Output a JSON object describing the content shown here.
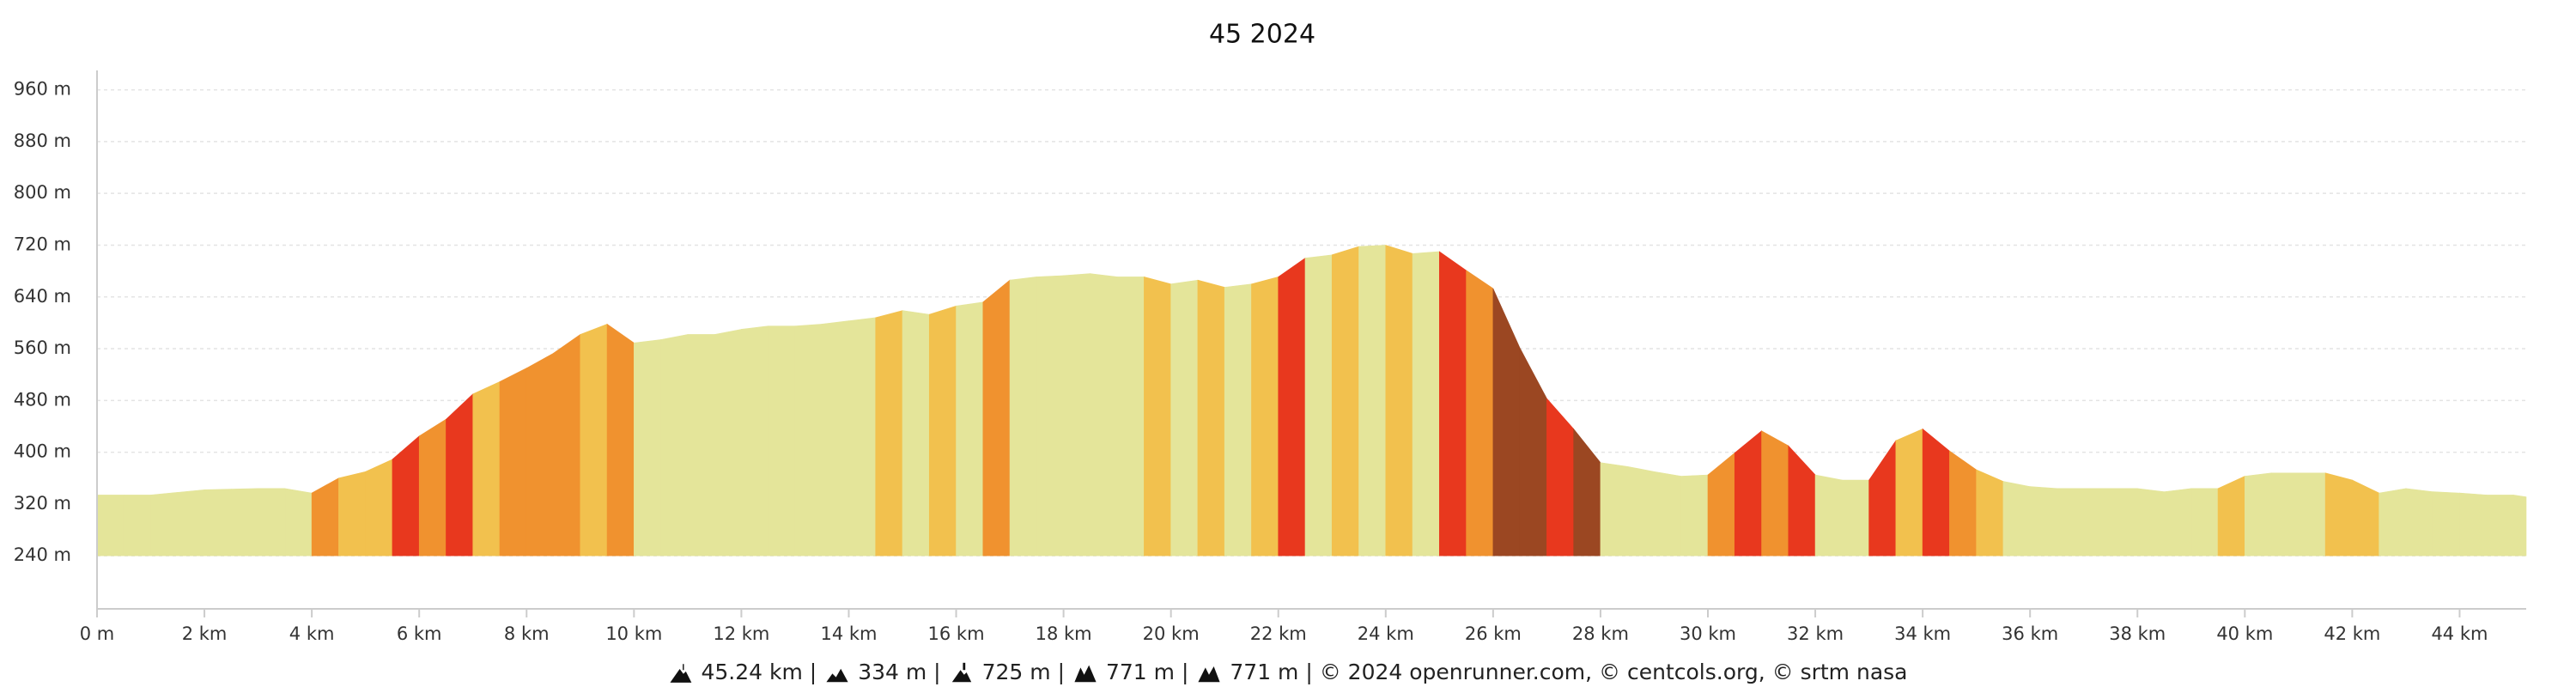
{
  "chart_data": {
    "type": "area",
    "title": "45 2024",
    "x": [
      0,
      0.5,
      1,
      1.5,
      2,
      2.5,
      3,
      3.5,
      4,
      4.5,
      5,
      5.5,
      6,
      6.5,
      7,
      7.5,
      8,
      8.5,
      9,
      9.5,
      10,
      10.5,
      11,
      11.5,
      12,
      12.5,
      13,
      13.5,
      14,
      14.5,
      15,
      15.5,
      16,
      16.5,
      17,
      17.5,
      18,
      18.5,
      19,
      19.5,
      20,
      20.5,
      21,
      21.5,
      22,
      22.5,
      23,
      23.5,
      24,
      24.5,
      25,
      25.5,
      26,
      26.5,
      27,
      27.5,
      28,
      28.5,
      29,
      29.5,
      30,
      30.5,
      31,
      31.5,
      32,
      32.5,
      33,
      33.5,
      34,
      34.5,
      35,
      35.5,
      36,
      36.5,
      37,
      37.5,
      38,
      38.5,
      39,
      39.5,
      40,
      40.5,
      41,
      41.5,
      42,
      42.5,
      43,
      43.5,
      44,
      44.5,
      45,
      45.24
    ],
    "values": [
      334,
      334,
      334,
      338,
      342,
      343,
      344,
      344,
      337,
      360,
      370,
      389,
      425,
      451,
      490,
      509,
      530,
      553,
      582,
      598,
      569,
      574,
      582,
      582,
      590,
      595,
      595,
      598,
      603,
      608,
      619,
      613,
      626,
      632,
      666,
      671,
      673,
      676,
      671,
      671,
      660,
      666,
      655,
      660,
      671,
      700,
      705,
      718,
      720,
      707,
      710,
      681,
      653,
      561,
      483,
      436,
      384,
      378,
      370,
      363,
      365,
      399,
      433,
      410,
      365,
      357,
      357,
      418,
      436,
      402,
      373,
      355,
      347,
      344,
      344,
      344,
      344,
      339,
      344,
      344,
      363,
      368,
      368,
      368,
      357,
      337,
      344,
      339,
      337,
      334,
      334,
      331
    ],
    "segment_colors": [
      "#e4e59a",
      "#e4e59a",
      "#e4e59a",
      "#e4e59a",
      "#e4e59a",
      "#e4e59a",
      "#e4e59a",
      "#e4e59a",
      "#f0922f",
      "#f2c14e",
      "#f2c14e",
      "#e8381e",
      "#f0922f",
      "#e8381e",
      "#f2c14e",
      "#f0922f",
      "#f0922f",
      "#f0922f",
      "#f2c14e",
      "#f0922f",
      "#e4e59a",
      "#e4e59a",
      "#e4e59a",
      "#e4e59a",
      "#e4e59a",
      "#e4e59a",
      "#e4e59a",
      "#e4e59a",
      "#e4e59a",
      "#f2c14e",
      "#e4e59a",
      "#f2c14e",
      "#e4e59a",
      "#f0922f",
      "#e4e59a",
      "#e4e59a",
      "#e4e59a",
      "#e4e59a",
      "#e4e59a",
      "#f2c14e",
      "#e4e59a",
      "#f2c14e",
      "#e4e59a",
      "#f2c14e",
      "#e8381e",
      "#e4e59a",
      "#f2c14e",
      "#e4e59a",
      "#f2c14e",
      "#e4e59a",
      "#e8381e",
      "#f0922f",
      "#9b4722",
      "#9b4722",
      "#e8381e",
      "#9b4722",
      "#e4e59a",
      "#e4e59a",
      "#e4e59a",
      "#e4e59a",
      "#f0922f",
      "#e8381e",
      "#f0922f",
      "#e8381e",
      "#e4e59a",
      "#e4e59a",
      "#e8381e",
      "#f2c14e",
      "#e8381e",
      "#f0922f",
      "#f2c14e",
      "#e4e59a",
      "#e4e59a",
      "#e4e59a",
      "#e4e59a",
      "#e4e59a",
      "#e4e59a",
      "#e4e59a",
      "#e4e59a",
      "#f2c14e",
      "#e4e59a",
      "#e4e59a",
      "#e4e59a",
      "#f2c14e",
      "#f2c14e",
      "#e4e59a",
      "#e4e59a",
      "#e4e59a",
      "#e4e59a",
      "#e4e59a",
      "#e4e59a"
    ],
    "xlim": [
      0,
      45.24
    ],
    "ylim": [
      158,
      990
    ],
    "xticks": [
      {
        "value": 0,
        "label": "0 m"
      },
      {
        "value": 2,
        "label": "2 km"
      },
      {
        "value": 4,
        "label": "4 km"
      },
      {
        "value": 6,
        "label": "6 km"
      },
      {
        "value": 8,
        "label": "8 km"
      },
      {
        "value": 10,
        "label": "10 km"
      },
      {
        "value": 12,
        "label": "12 km"
      },
      {
        "value": 14,
        "label": "14 km"
      },
      {
        "value": 16,
        "label": "16 km"
      },
      {
        "value": 18,
        "label": "18 km"
      },
      {
        "value": 20,
        "label": "20 km"
      },
      {
        "value": 22,
        "label": "22 km"
      },
      {
        "value": 24,
        "label": "24 km"
      },
      {
        "value": 26,
        "label": "26 km"
      },
      {
        "value": 28,
        "label": "28 km"
      },
      {
        "value": 30,
        "label": "30 km"
      },
      {
        "value": 32,
        "label": "32 km"
      },
      {
        "value": 34,
        "label": "34 km"
      },
      {
        "value": 36,
        "label": "36 km"
      },
      {
        "value": 38,
        "label": "38 km"
      },
      {
        "value": 40,
        "label": "40 km"
      },
      {
        "value": 42,
        "label": "42 km"
      },
      {
        "value": 44,
        "label": "44 km"
      }
    ],
    "yticks": [
      {
        "value": 240,
        "label": "240 m"
      },
      {
        "value": 320,
        "label": "320 m"
      },
      {
        "value": 400,
        "label": "400 m"
      },
      {
        "value": 480,
        "label": "480 m"
      },
      {
        "value": 560,
        "label": "560 m"
      },
      {
        "value": 640,
        "label": "640 m"
      },
      {
        "value": 720,
        "label": "720 m"
      },
      {
        "value": 800,
        "label": "800 m"
      },
      {
        "value": 880,
        "label": "880 m"
      },
      {
        "value": 960,
        "label": "960 m"
      }
    ],
    "grid": true,
    "footer": [
      "45.24 km |",
      "334 m |",
      "725 m |",
      "771 m |",
      "771 m | © 2024 openrunner.com, © centcols.org, © srtm nasa"
    ]
  }
}
